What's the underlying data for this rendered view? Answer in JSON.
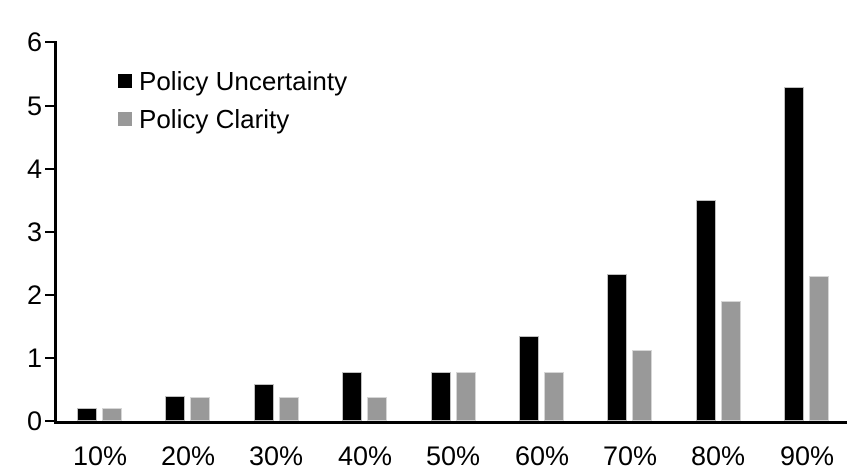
{
  "chart_data": {
    "type": "bar",
    "categories": [
      "10%",
      "20%",
      "30%",
      "40%",
      "50%",
      "60%",
      "70%",
      "80%",
      "90%"
    ],
    "series": [
      {
        "name": "Policy Uncertainty",
        "color": "#000000",
        "values": [
          0.2,
          0.4,
          0.58,
          0.77,
          0.78,
          1.34,
          2.33,
          3.5,
          5.3
        ]
      },
      {
        "name": "Policy Clarity",
        "color": "#999999",
        "values": [
          0.2,
          0.38,
          0.38,
          0.38,
          0.78,
          0.77,
          1.13,
          1.9,
          2.3
        ]
      }
    ],
    "title": "",
    "xlabel": "",
    "ylabel": "",
    "ylim": [
      0,
      6
    ],
    "yticks": [
      0,
      1,
      2,
      3,
      4,
      5,
      6
    ],
    "grid": false,
    "legend_position": "top-left",
    "axis_color": "#000000",
    "background_color": "#ffffff"
  }
}
